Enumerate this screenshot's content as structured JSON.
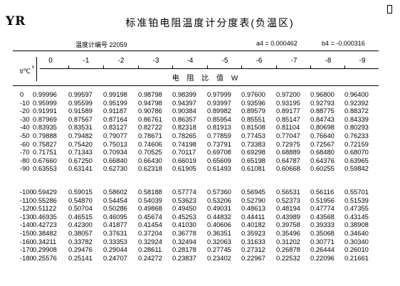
{
  "header": {
    "brand": "YR",
    "title": "标准铂电阻温度计分度表(负温区)",
    "thermometer_label": "温度计编号 22059",
    "a4_label": "a4 = 0.000462",
    "b4_label": "b4 = -0.000316"
  },
  "table": {
    "temp_axis_label": "t/℃",
    "unit_label": "电 阻 比 值 W",
    "column_headers": [
      "0",
      "-1",
      "-2",
      "-3",
      "-4",
      "-5",
      "-6",
      "-7",
      "-8",
      "-9"
    ],
    "group1": [
      {
        "t": "0",
        "values": [
          "0.99996",
          "0.99597",
          "0.99198",
          "0.98798",
          "0.98399",
          "0.97999",
          "0.97600",
          "0.97200",
          "0.96800",
          "0.96400"
        ]
      },
      {
        "t": "-10",
        "values": [
          "0.95999",
          "0.95599",
          "0.95199",
          "0.94798",
          "0.94397",
          "0.93997",
          "0.93596",
          "0.93195",
          "0.92793",
          "0.92392"
        ]
      },
      {
        "t": "-20",
        "values": [
          "0.91991",
          "0.91589",
          "0.91187",
          "0.90786",
          "0.90384",
          "0.89982",
          "0.89579",
          "0.89177",
          "0.88775",
          "0.88372"
        ]
      },
      {
        "t": "-30",
        "values": [
          "0.87969",
          "0.87567",
          "0.87164",
          "0.86761",
          "0.86357",
          "0.85954",
          "0.85551",
          "0.85147",
          "0.84743",
          "0.84339"
        ]
      },
      {
        "t": "-40",
        "values": [
          "0.83935",
          "0.83531",
          "0.83127",
          "0.82722",
          "0.82318",
          "0.81913",
          "0.81508",
          "0.81104",
          "0.80698",
          "0.80293"
        ]
      },
      {
        "t": "-50",
        "values": [
          "0.79888",
          "0.79482",
          "0.79077",
          "0.78671",
          "0.78265",
          "0.77859",
          "0.77453",
          "0.77047",
          "0.76640",
          "0.76233"
        ]
      },
      {
        "t": "-60",
        "values": [
          "0.75827",
          "0.75420",
          "0.75013",
          "0.74606",
          "0.74198",
          "0.73791",
          "0.73383",
          "0.72975",
          "0.72567",
          "0.72159"
        ]
      },
      {
        "t": "-70",
        "values": [
          "0.71751",
          "0.71343",
          "0.70934",
          "0.70525",
          "0.70117",
          "0.69708",
          "0.69298",
          "0.68889",
          "0.68480",
          "0.68070"
        ]
      },
      {
        "t": "-80",
        "values": [
          "0.67660",
          "0.67250",
          "0.66840",
          "0.66430",
          "0.66019",
          "0.65609",
          "0.65198",
          "0.64787",
          "0.64376",
          "0.63965"
        ]
      },
      {
        "t": "-90",
        "values": [
          "0.63553",
          "0.63141",
          "0.62730",
          "0.62318",
          "0.61905",
          "0.61493",
          "0.61081",
          "0.60668",
          "0.60255",
          "0.59842"
        ]
      }
    ],
    "group2": [
      {
        "t": "-100",
        "values": [
          "0.59429",
          "0.59015",
          "0.58602",
          "0.58188",
          "0.57774",
          "0.57360",
          "0.56945",
          "0.56531",
          "0.56116",
          "0.55701"
        ]
      },
      {
        "t": "-110",
        "values": [
          "0.55286",
          "0.54870",
          "0.54454",
          "0.54039",
          "0.53623",
          "0.53206",
          "0.52790",
          "0.52373",
          "0.51956",
          "0.51539"
        ]
      },
      {
        "t": "-120",
        "values": [
          "0.51122",
          "0.50704",
          "0.50286",
          "0.49868",
          "0.49450",
          "0.49031",
          "0.48613",
          "0.48194",
          "0.47774",
          "0.47355"
        ]
      },
      {
        "t": "-130",
        "values": [
          "0.46935",
          "0.46515",
          "0.46095",
          "0.45674",
          "0.45253",
          "0.44832",
          "0.44411",
          "0.43989",
          "0.43568",
          "0.43145"
        ]
      },
      {
        "t": "-140",
        "values": [
          "0.42723",
          "0.42300",
          "0.41877",
          "0.41454",
          "0.41030",
          "0.40606",
          "0.40182",
          "0.39758",
          "0.39333",
          "0.38908"
        ]
      },
      {
        "t": "-150",
        "values": [
          "0.38482",
          "0.38057",
          "0.37631",
          "0.37204",
          "0.36778",
          "0.36351",
          "0.35923",
          "0.35496",
          "0.35068",
          "0.34640"
        ]
      },
      {
        "t": "-160",
        "values": [
          "0.34211",
          "0.33782",
          "0.33353",
          "0.32924",
          "0.32494",
          "0.32063",
          "0.31633",
          "0.31202",
          "0.30771",
          "0.30340"
        ]
      },
      {
        "t": "-170",
        "values": [
          "0.29908",
          "0.29476",
          "0.29044",
          "0.28611",
          "0.28178",
          "0.27745",
          "0.27312",
          "0.26878",
          "0.26444",
          "0.26010"
        ]
      },
      {
        "t": "-180",
        "values": [
          "0.25576",
          "0.25141",
          "0.24707",
          "0.24272",
          "0.23837",
          "0.23402",
          "0.22967",
          "0.22532",
          "0.22096",
          "0.21661"
        ]
      }
    ]
  }
}
